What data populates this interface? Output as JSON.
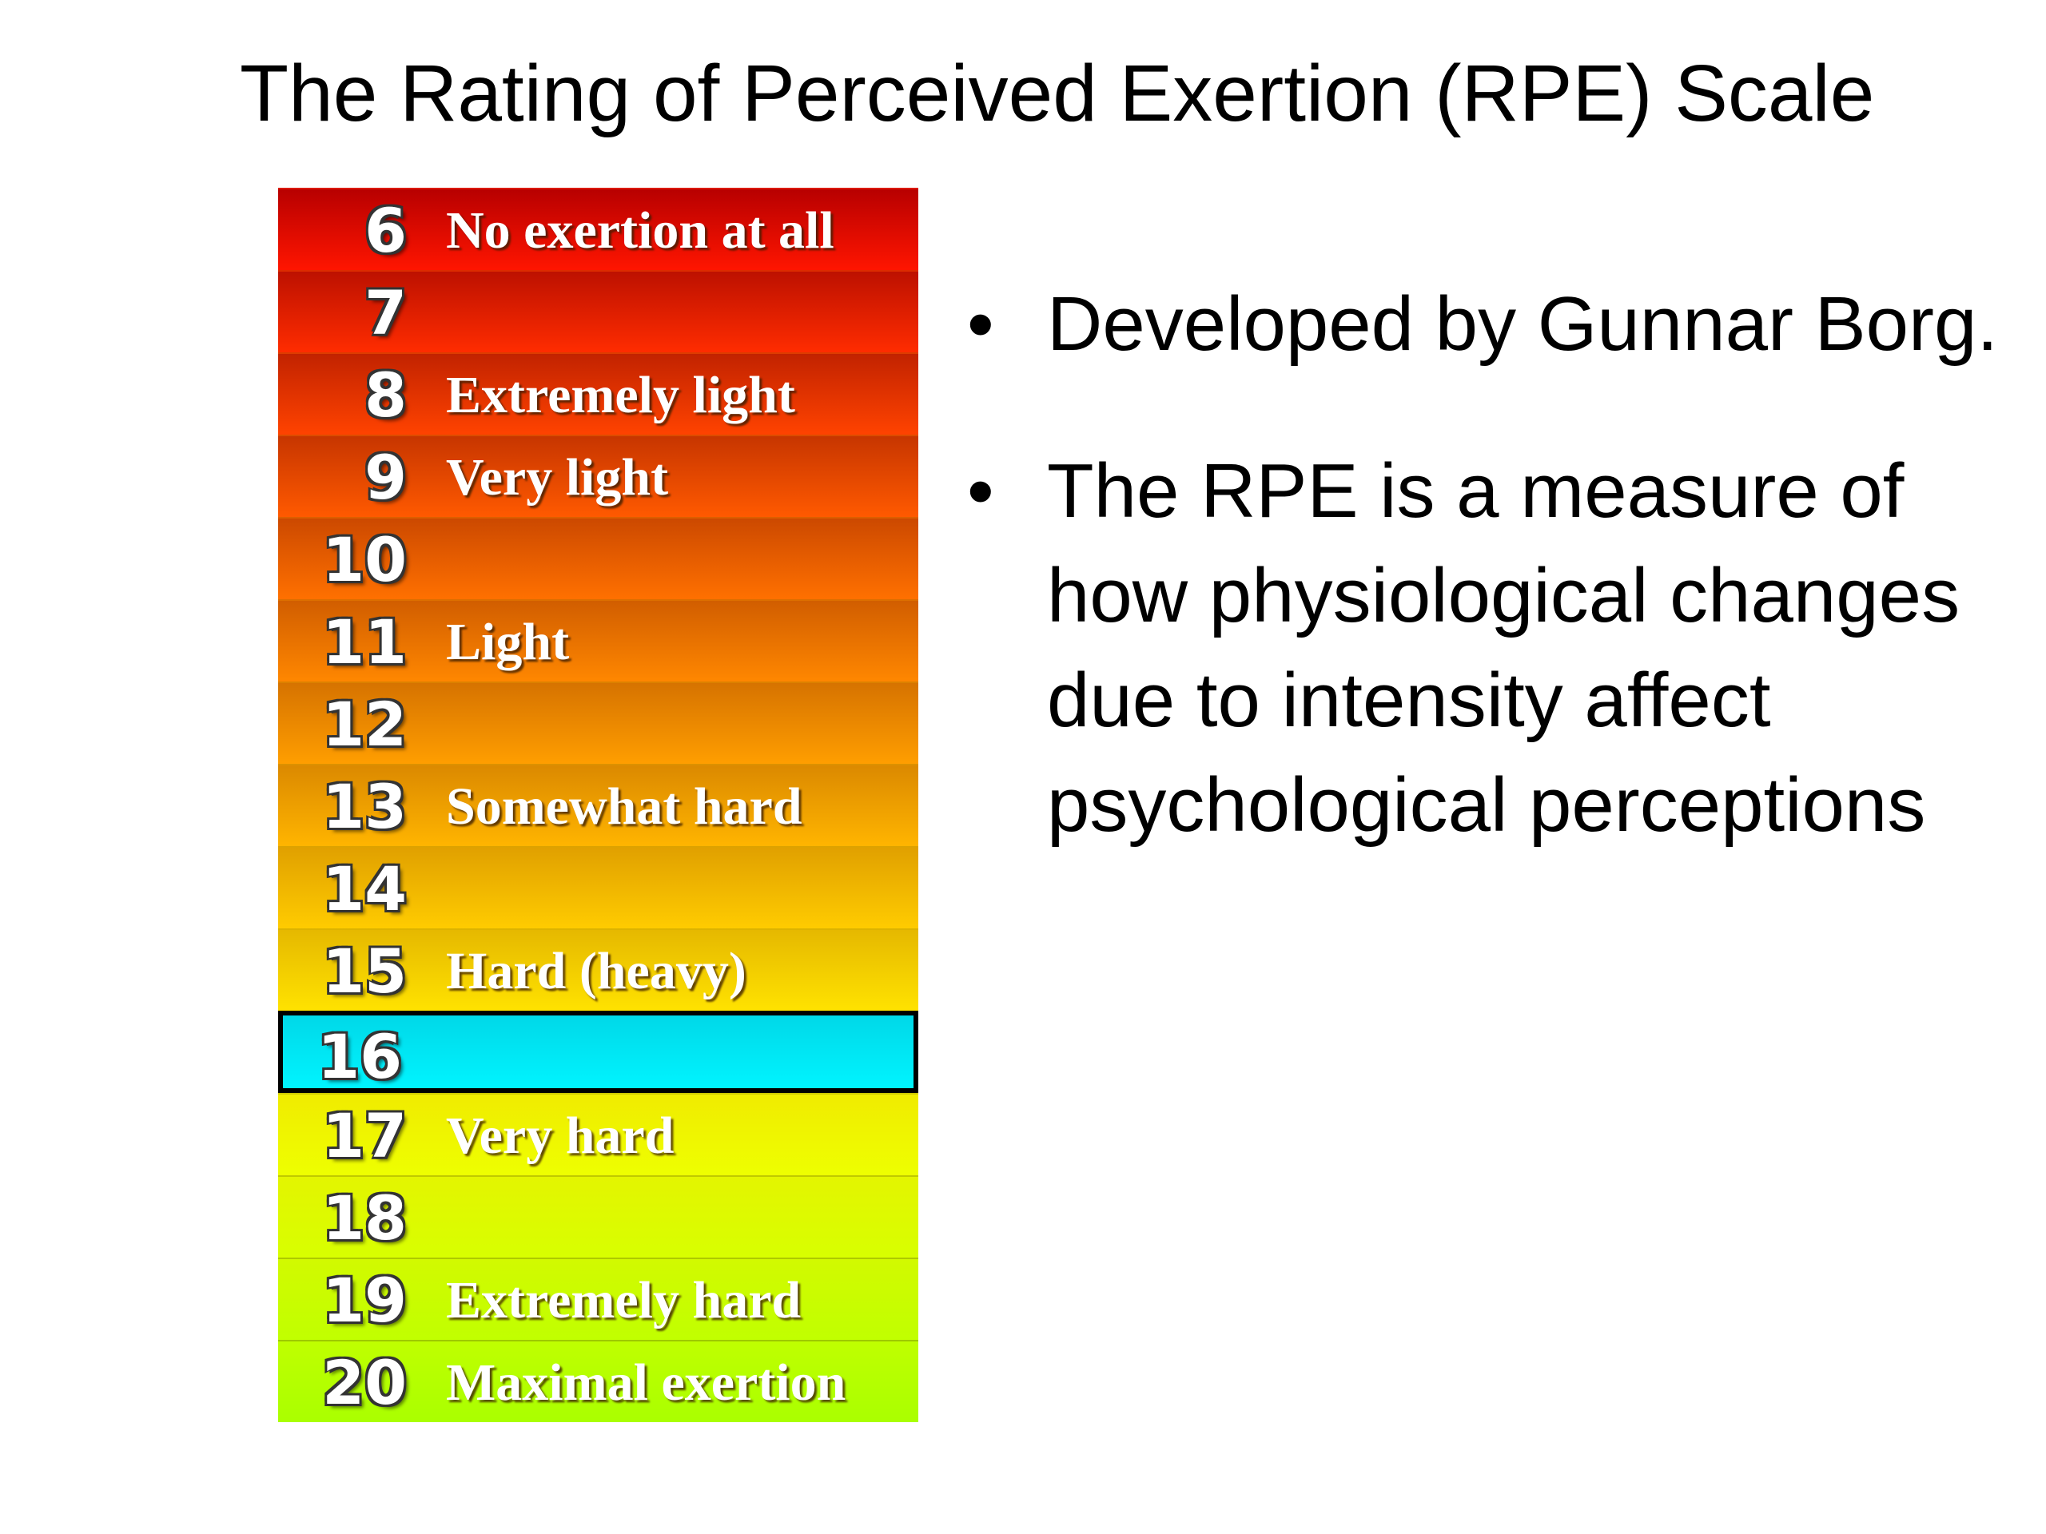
{
  "title": "The Rating of Perceived Exertion (RPE) Scale",
  "scale": {
    "rows": [
      {
        "number": 6,
        "label": "No exertion at all"
      },
      {
        "number": 7
      },
      {
        "number": 8,
        "label": "Extremely light"
      },
      {
        "number": 9,
        "label": "Very light"
      },
      {
        "number": 10
      },
      {
        "number": 11,
        "label": "Light"
      },
      {
        "number": 12
      },
      {
        "number": 13,
        "label": "Somewhat hard"
      },
      {
        "number": 14
      },
      {
        "number": 15,
        "label": "Hard (heavy)"
      },
      {
        "number": 16
      },
      {
        "number": 17,
        "label": "Very hard"
      },
      {
        "number": 18
      },
      {
        "number": 19,
        "label": "Extremely hard"
      },
      {
        "number": 20,
        "label": "Maximal exertion"
      }
    ]
  },
  "bullets": [
    "Developed by Gunnar Borg.",
    "The RPE is a measure of how physiological changes due to intensity affect psychological perceptions"
  ]
}
